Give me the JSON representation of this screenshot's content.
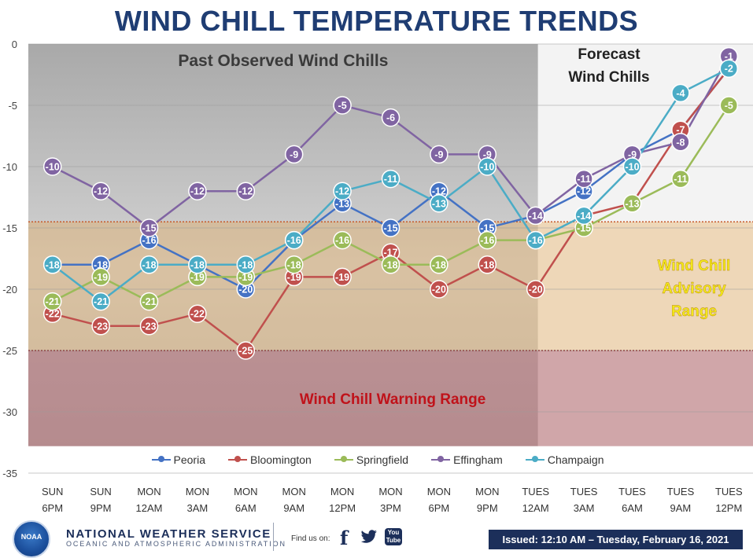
{
  "chart_data": {
    "type": "line",
    "title": "WIND CHILL TEMPERATURE TRENDS",
    "categories": [
      [
        "SUN",
        "6PM"
      ],
      [
        "SUN",
        "9PM"
      ],
      [
        "MON",
        "12AM"
      ],
      [
        "MON",
        "3AM"
      ],
      [
        "MON",
        "6AM"
      ],
      [
        "MON",
        "9AM"
      ],
      [
        "MON",
        "12PM"
      ],
      [
        "MON",
        "3PM"
      ],
      [
        "MON",
        "6PM"
      ],
      [
        "MON",
        "9PM"
      ],
      [
        "TUES",
        "12AM"
      ],
      [
        "TUES",
        "3AM"
      ],
      [
        "TUES",
        "6AM"
      ],
      [
        "TUES",
        "9AM"
      ],
      [
        "TUES",
        "12PM"
      ]
    ],
    "ylim": [
      -35,
      0
    ],
    "yticks": [
      0,
      -5,
      -10,
      -15,
      -20,
      -25,
      -30,
      -35
    ],
    "grid": true,
    "legend_position": "bottom",
    "series": [
      {
        "name": "Peoria",
        "color": "#4472c4",
        "values": [
          -18,
          -18,
          -16,
          -18,
          -20,
          -16,
          -13,
          -15,
          -12,
          -15,
          -14,
          -12,
          -9,
          -7,
          -2
        ]
      },
      {
        "name": "Bloomington",
        "color": "#c0504d",
        "values": [
          -22,
          -23,
          -23,
          -22,
          -25,
          -19,
          -19,
          -17,
          -20,
          -18,
          -20,
          -14,
          -13,
          -7,
          -2
        ]
      },
      {
        "name": "Springfield",
        "color": "#9bbb59",
        "values": [
          -21,
          -19,
          -21,
          -19,
          -19,
          -18,
          -16,
          -18,
          -18,
          -16,
          -16,
          -15,
          -13,
          -11,
          -5
        ]
      },
      {
        "name": "Effingham",
        "color": "#8064a2",
        "values": [
          -10,
          -12,
          -15,
          -12,
          -12,
          -9,
          -5,
          -6,
          -9,
          -9,
          -14,
          -11,
          -9,
          -8,
          -1
        ]
      },
      {
        "name": "Champaign",
        "color": "#4bacc6",
        "values": [
          -18,
          -21,
          -18,
          -18,
          -18,
          -16,
          -12,
          -11,
          -13,
          -10,
          -16,
          -14,
          -10,
          -4,
          -2
        ]
      }
    ],
    "regions": {
      "past_label": "Past Observed Wind Chills",
      "forecast_label": [
        "Forecast",
        "Wind Chills"
      ],
      "advisory_label": [
        "Wind Chill",
        "Advisory",
        "Range"
      ],
      "warning_label": "Wind Chill Warning Range",
      "advisory_range": [
        -25,
        -14.5
      ],
      "warning_range": [
        -35,
        -25
      ],
      "forecast_start_index": 10.55
    },
    "colors": {
      "past_bg": "#c9c9c9",
      "forecast_bg": "#f3f3f3",
      "advisory_fill": "#e6a24a",
      "warning_fill": "#a7494f",
      "title_color": "#1f3d73",
      "advisory_text": "#f4ea1c",
      "warning_text": "#c0121a"
    }
  },
  "footer": {
    "agency_name": "NATIONAL WEATHER SERVICE",
    "agency_sub": "OCEANIC AND ATMOSPHERIC ADMINISTRATION",
    "logo_text": "NOAA",
    "find_us": "Find us on:",
    "facebook_icon": "f",
    "youtube_icon": [
      "You",
      "Tube"
    ],
    "issued": "Issued: 12:10 AM – Tuesday, February 16, 2021"
  }
}
